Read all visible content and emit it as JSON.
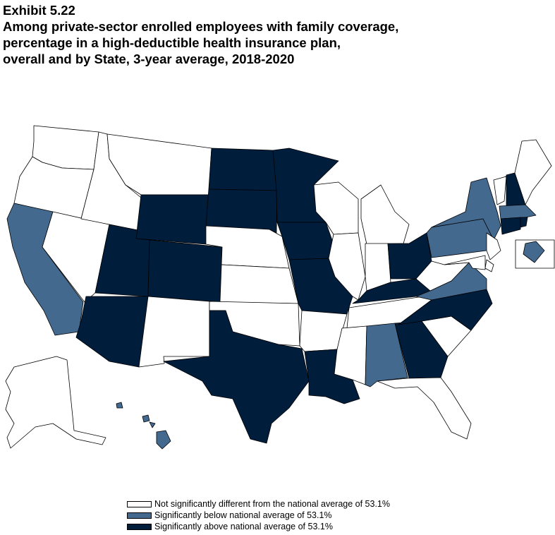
{
  "title": {
    "exhibit": "Exhibit 5.22",
    "line1": "Among private-sector enrolled employees with family coverage,",
    "line2": "percentage in a high-deductible health insurance plan,",
    "line3": "overall and by State, 3-year average, 2018-2020"
  },
  "colors": {
    "not_different": "#ffffff",
    "below": "#44698f",
    "above": "#001d3c"
  },
  "legend": [
    {
      "key": "not_different",
      "label": "Not significantly different from the national average of 53.1%"
    },
    {
      "key": "below",
      "label": "Significantly below national average of 53.1%"
    },
    {
      "key": "above",
      "label": "Significantly above national average of 53.1%"
    }
  ],
  "states": {
    "WA": "not_different",
    "OR": "not_different",
    "CA": "below",
    "NV": "not_different",
    "ID": "not_different",
    "MT": "not_different",
    "WY": "above",
    "UT": "above",
    "AZ": "above",
    "CO": "above",
    "NM": "not_different",
    "ND": "above",
    "SD": "above",
    "NE": "not_different",
    "KS": "not_different",
    "OK": "not_different",
    "TX": "above",
    "MN": "above",
    "IA": "above",
    "MO": "above",
    "AR": "not_different",
    "LA": "above",
    "WI": "not_different",
    "IL": "not_different",
    "MI": "not_different",
    "IN": "not_different",
    "OH": "above",
    "KY": "above",
    "TN": "not_different",
    "MS": "not_different",
    "AL": "below",
    "GA": "above",
    "FL": "not_different",
    "SC": "not_different",
    "NC": "above",
    "VA": "below",
    "WV": "not_different",
    "PA": "below",
    "NY": "below",
    "VT": "not_different",
    "NH": "above",
    "ME": "not_different",
    "MA": "below",
    "RI": "above",
    "CT": "above",
    "NJ": "not_different",
    "DE": "not_different",
    "MD": "not_different",
    "DC": "below",
    "AK": "not_different",
    "HI": "below"
  }
}
